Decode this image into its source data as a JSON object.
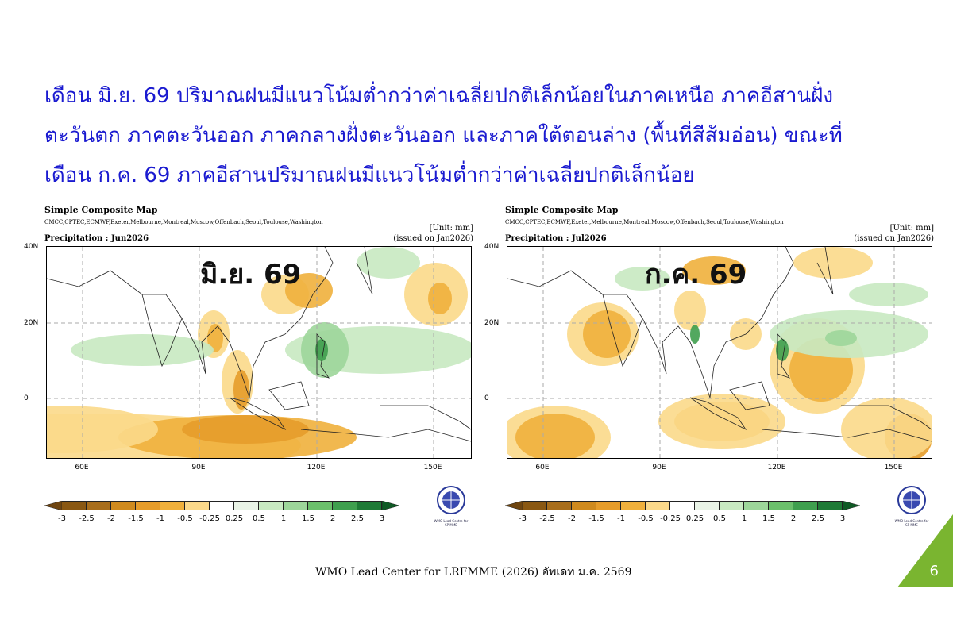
{
  "headline": [
    "เดือน มิ.ย. 69 ปริมาณฝนมีแนวโน้มต่ำกว่าค่าเฉลี่ยปกติเล็กน้อยในภาคเหนือ ภาคอีสานฝั่ง",
    "ตะวันตก ภาคตะวันออก ภาคกลางฝั่งตะวันออก และภาคใต้ตอนล่าง (พื้นที่สีส้มอ่อน) ขณะที่",
    "เดือน ก.ค. 69 ภาคอีสานปริมาณฝนมีแนวโน้มต่ำกว่าค่าเฉลี่ยปกติเล็กน้อย"
  ],
  "panels": [
    {
      "title": "Simple Composite Map",
      "models": "CMCC,CPTEC,ECMWF,Exeter,Melbourne,Montreal,Moscow,Offenbach,Seoul,Toulouse,Washington",
      "unit": "[Unit: mm]",
      "variable": "Precipitation : Jun2026",
      "issued": "(issued on Jan2026)",
      "overlay": "มิ.ย. 69"
    },
    {
      "title": "Simple Composite Map",
      "models": "CMCC,CPTEC,ECMWF,Exeter,Melbourne,Montreal,Moscow,Offenbach,Seoul,Toulouse,Washington",
      "unit": "[Unit: mm]",
      "variable": "Precipitation : Jul2026",
      "issued": "(issued on Jan2026)",
      "overlay": "ก.ค. 69"
    }
  ],
  "lat_labels": [
    "40N",
    "20N",
    "0"
  ],
  "lon_labels": [
    "60E",
    "90E",
    "120E",
    "150E"
  ],
  "colorbar": {
    "ticks": [
      "-3",
      "-2.5",
      "-2",
      "-1.5",
      "-1",
      "-0.5",
      "-0.25",
      "0.25",
      "0.5",
      "1",
      "1.5",
      "2",
      "2.5",
      "3"
    ],
    "colors": [
      "#8a5812",
      "#a86e1c",
      "#cf8a1e",
      "#e69c2a",
      "#f0b03c",
      "#fbd98a",
      "#ffffff",
      "#e9f3e6",
      "#c8e9c1",
      "#9dd69a",
      "#6bbf6b",
      "#3f9f4e",
      "#1f7a36"
    ],
    "under_color": "#6e4510",
    "over_color": "#0f5a25"
  },
  "logo_text": "WMO Lead Centre for SP MME",
  "footer": "WMO Lead Center for LRFMME (2026) อัพเดท ม.ค. 2569",
  "page_number": "6",
  "accent": "#7ab530"
}
